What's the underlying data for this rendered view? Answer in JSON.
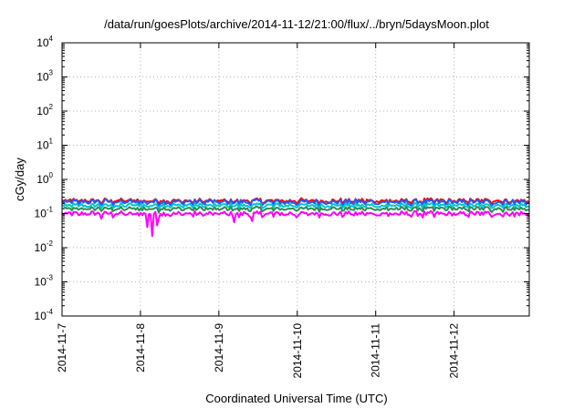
{
  "chart_data": {
    "type": "line",
    "title": "/data/run/goesPlots/archive/2014-11-12/21:00/flux/../bryn/5daysMoon.plot",
    "xlabel": "Coordinated Universal Time (UTC)",
    "ylabel": "cGy/day",
    "yscale": "log",
    "ylim": [
      0.0001,
      10000
    ],
    "yticks": [
      {
        "base": "10",
        "exp": "-4"
      },
      {
        "base": "10",
        "exp": "-3"
      },
      {
        "base": "10",
        "exp": "-2"
      },
      {
        "base": "10",
        "exp": "-1"
      },
      {
        "base": "10",
        "exp": "0"
      },
      {
        "base": "10",
        "exp": "1"
      },
      {
        "base": "10",
        "exp": "2"
      },
      {
        "base": "10",
        "exp": "3"
      },
      {
        "base": "10",
        "exp": "4"
      }
    ],
    "xlim": [
      "2014-11-07",
      "2014-11-12 23:00"
    ],
    "xticks": [
      "2014-11-7",
      "2014-11-8",
      "2014-11-9",
      "2014-11-10",
      "2014-11-11",
      "2014-11-12"
    ],
    "grid": true,
    "series": [
      {
        "color": "#ff0000",
        "base": 0.24,
        "amp": 0.3
      },
      {
        "color": "#1e5fff",
        "base": 0.22,
        "amp": 0.38
      },
      {
        "color": "#00c8c8",
        "base": 0.175,
        "amp": 0.3
      },
      {
        "color": "#2e8b57",
        "base": 0.14,
        "amp": 0.28
      },
      {
        "color": "#ff00ff",
        "base": 0.1,
        "amp": 0.34
      }
    ],
    "dips": [
      {
        "day": 1.15,
        "value": 0.022
      },
      {
        "day": 1.08,
        "value": 0.04
      },
      {
        "day": 1.22,
        "value": 0.045
      },
      {
        "day": 2.2,
        "value": 0.055
      },
      {
        "day": 2.42,
        "value": 0.06
      },
      {
        "day": 0.5,
        "value": 0.07
      }
    ]
  }
}
